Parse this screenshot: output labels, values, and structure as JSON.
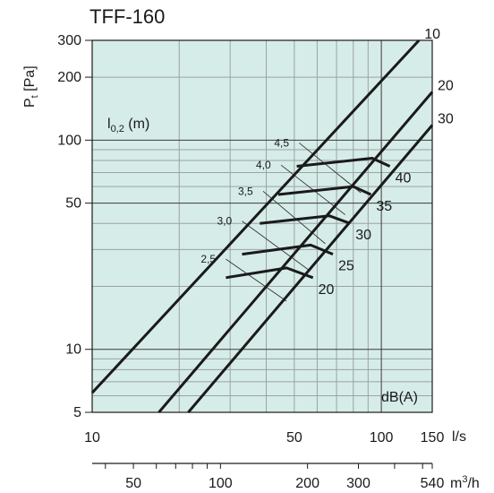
{
  "title": "TFF-160",
  "ylabel_main": "P",
  "ylabel_sub": "t",
  "ylabel_unit": " [Pa]",
  "throw_label_main": "l",
  "throw_label_sub": "0,2",
  "throw_label_unit": " (m)",
  "sound_label": "dB(A)",
  "x_unit": "l/s",
  "x2_unit_main": "m",
  "x2_unit_sup": "3",
  "x2_unit_tail": "/h",
  "colors": {
    "plot_bg": "#d6ece8",
    "grid": "#9aa3a3",
    "curve": "#1a1a1a"
  },
  "chart_data": {
    "type": "line",
    "x_scale": "log",
    "y_scale": "log",
    "xlim": [
      10,
      150
    ],
    "ylim": [
      5,
      300
    ],
    "grid": true,
    "x_ticks": [
      "10",
      "50",
      "100",
      "150"
    ],
    "x_tick_values": [
      10,
      50,
      100,
      150
    ],
    "y_ticks": [
      "300",
      "200",
      "100",
      "50",
      "10",
      "5"
    ],
    "y_tick_values": [
      300,
      200,
      100,
      50,
      10,
      5
    ],
    "x2_ticks": [
      "50",
      "100",
      "200",
      "300",
      "540"
    ],
    "x2_tick_values": [
      50,
      100,
      200,
      300,
      540
    ],
    "series": [
      {
        "name": "10",
        "points": [
          [
            10,
            6.2
          ],
          [
            135,
            300
          ]
        ]
      },
      {
        "name": "20",
        "points": [
          [
            17,
            5
          ],
          [
            150,
            170
          ]
        ]
      },
      {
        "name": "30",
        "points": [
          [
            21.5,
            5
          ],
          [
            150,
            118
          ]
        ]
      }
    ],
    "sound_levels": [
      {
        "label": "20",
        "points": [
          [
            29,
            22
          ],
          [
            47,
            24.5
          ],
          [
            58,
            22
          ]
        ]
      },
      {
        "label": "25",
        "points": [
          [
            33,
            28.5
          ],
          [
            57,
            31.5
          ],
          [
            68,
            28.5
          ]
        ]
      },
      {
        "label": "30",
        "points": [
          [
            38,
            40
          ],
          [
            66,
            43.5
          ],
          [
            78,
            40
          ]
        ]
      },
      {
        "label": "35",
        "points": [
          [
            44,
            55
          ],
          [
            80,
            60
          ],
          [
            92,
            55
          ]
        ]
      },
      {
        "label": "40",
        "points": [
          [
            51,
            75
          ],
          [
            93,
            82
          ],
          [
            107,
            75
          ]
        ]
      }
    ],
    "throw_values": [
      {
        "label": "2,5",
        "start": [
          29,
          27
        ],
        "end": [
          47,
          17
        ]
      },
      {
        "label": "3,0",
        "start": [
          33,
          41
        ],
        "end": [
          56,
          24
        ]
      },
      {
        "label": "3,5",
        "start": [
          39,
          57
        ],
        "end": [
          64,
          32
        ]
      },
      {
        "label": "4,0",
        "start": [
          45,
          76
        ],
        "end": [
          75,
          44
        ]
      },
      {
        "label": "4,5",
        "start": [
          52,
          97
        ],
        "end": [
          85,
          56
        ]
      }
    ]
  }
}
